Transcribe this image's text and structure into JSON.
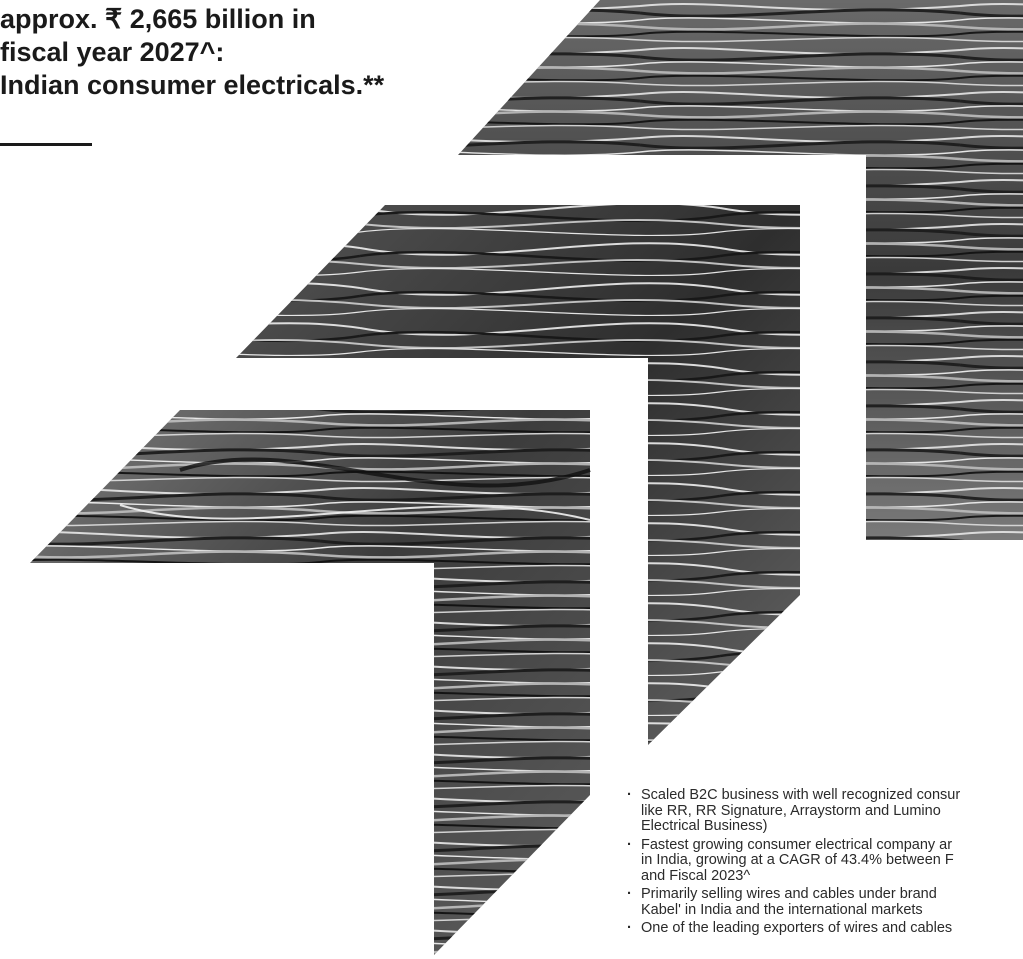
{
  "headline": {
    "lines": [
      "approx. ₹ 2,665 billion in",
      "fiscal year 2027^:",
      "Indian consumer electricals.**"
    ]
  },
  "illustration": {
    "icon": "wire-strands-arrow-graphic",
    "tone": "#4a4a4a"
  },
  "bullets": [
    {
      "lines": [
        "Scaled B2C business with well recognized consur",
        "like RR, RR Signature, Arraystorm and Lumino",
        "Electrical Business)"
      ]
    },
    {
      "lines": [
        "Fastest growing consumer electrical company ar",
        "in India, growing at a CAGR of 43.4% between F",
        "and Fiscal 2023^"
      ]
    },
    {
      "lines": [
        "Primarily selling wires and cables under brand",
        "Kabel' in India and the international markets"
      ]
    },
    {
      "lines": [
        "One of the leading exporters of wires and cables"
      ]
    }
  ]
}
